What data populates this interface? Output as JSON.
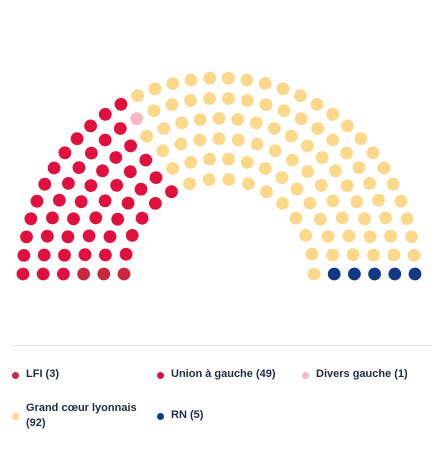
{
  "chart_data": {
    "type": "parliament",
    "total_seats": 150,
    "parties": [
      {
        "name": "LFI",
        "seats": 3,
        "color": "#c8293e",
        "label": "LFI (3)"
      },
      {
        "name": "Union à gauche",
        "seats": 49,
        "color": "#e0113f",
        "label": "Union à gauche (49)"
      },
      {
        "name": "Divers gauche",
        "seats": 1,
        "color": "#f7b7c3",
        "label": "Divers gauche (1)"
      },
      {
        "name": "Grand cœur lyonnais",
        "seats": 92,
        "color": "#fcd88a",
        "label": "Grand cœur lyonnais (92)"
      },
      {
        "name": "RN",
        "seats": 5,
        "color": "#123a84",
        "label": "RN (5)"
      }
    ]
  }
}
